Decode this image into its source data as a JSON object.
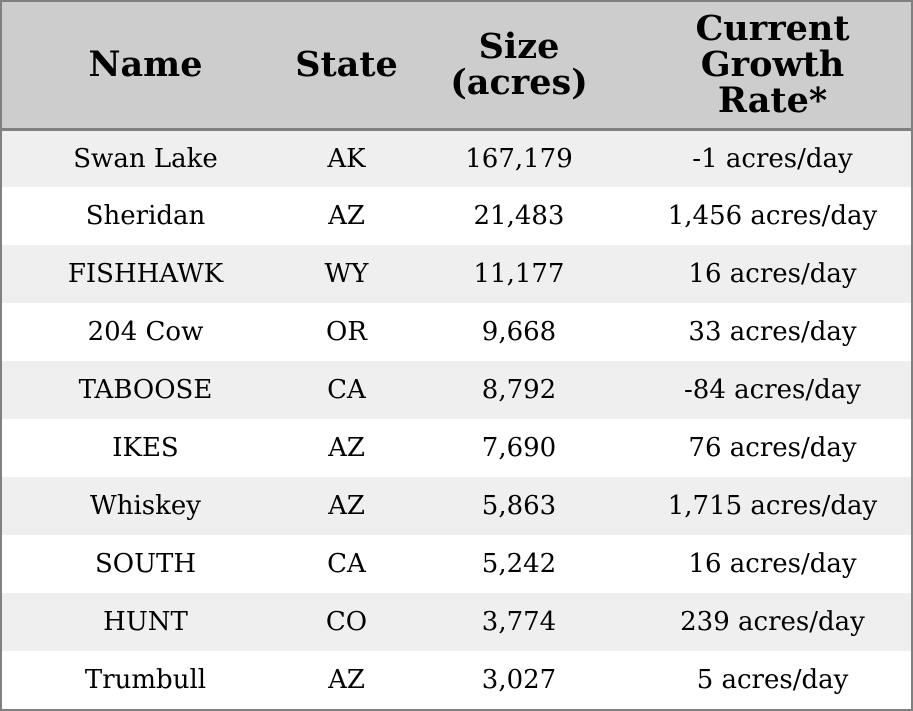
{
  "chart_data": {
    "type": "table",
    "columns": [
      [
        "Name"
      ],
      [
        "State"
      ],
      [
        "Size",
        "(acres)"
      ],
      [
        "Current",
        "Growth",
        "Rate*"
      ]
    ],
    "rows": [
      [
        "Swan Lake",
        "AK",
        "167,179",
        "-1 acres/day"
      ],
      [
        "Sheridan",
        "AZ",
        "21,483",
        "1,456 acres/day"
      ],
      [
        "FISHHAWK",
        "WY",
        "11,177",
        "16 acres/day"
      ],
      [
        "204 Cow",
        "OR",
        "9,668",
        "33 acres/day"
      ],
      [
        "TABOOSE",
        "CA",
        "8,792",
        "-84 acres/day"
      ],
      [
        "IKES",
        "AZ",
        "7,690",
        "76 acres/day"
      ],
      [
        "Whiskey",
        "AZ",
        "5,863",
        "1,715 acres/day"
      ],
      [
        "SOUTH",
        "CA",
        "5,242",
        "16 acres/day"
      ],
      [
        "HUNT",
        "CO",
        "3,774",
        "239 acres/day"
      ],
      [
        "Trumbull",
        "AZ",
        "3,027",
        "5 acres/day"
      ]
    ],
    "header_background": "#cdcdcd",
    "stripe_color": "#efefef",
    "border_color": "#808080"
  }
}
